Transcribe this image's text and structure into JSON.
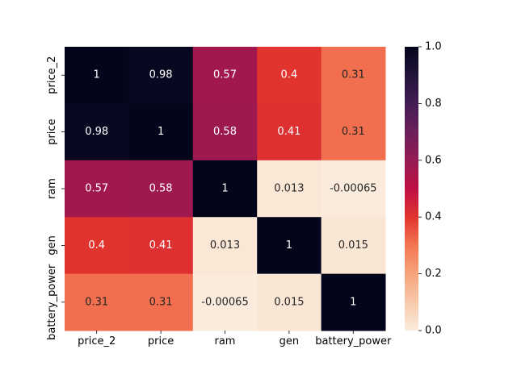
{
  "chart_data": {
    "type": "heatmap",
    "title": "",
    "xlabel": "",
    "ylabel": "",
    "x_categories": [
      "price_2",
      "price",
      "ram",
      "gen",
      "battery_power"
    ],
    "y_categories": [
      "price_2",
      "price",
      "ram",
      "gen",
      "battery_power"
    ],
    "values": [
      [
        1,
        0.98,
        0.57,
        0.4,
        0.31
      ],
      [
        0.98,
        1,
        0.58,
        0.41,
        0.31
      ],
      [
        0.57,
        0.58,
        1,
        0.013,
        -0.00065
      ],
      [
        0.4,
        0.41,
        0.013,
        1,
        0.015
      ],
      [
        0.31,
        0.31,
        -0.00065,
        0.015,
        1
      ]
    ],
    "cell_labels": [
      [
        "1",
        "0.98",
        "0.57",
        "0.4",
        "0.31"
      ],
      [
        "0.98",
        "1",
        "0.58",
        "0.41",
        "0.31"
      ],
      [
        "0.57",
        "0.58",
        "1",
        "0.013",
        "-0.00065"
      ],
      [
        "0.4",
        "0.41",
        "0.013",
        "1",
        "0.015"
      ],
      [
        "0.31",
        "0.31",
        "-0.00065",
        "0.015",
        "1"
      ]
    ],
    "colorbar": {
      "range": [
        0.0,
        1.0
      ],
      "ticks": [
        0.0,
        0.2,
        0.4,
        0.6,
        0.8,
        1.0
      ],
      "tick_labels": [
        "0.0",
        "0.2",
        "0.4",
        "0.6",
        "0.8",
        "1.0"
      ],
      "colormap": "rocket_r"
    },
    "grid": false,
    "legend": "colorbar-right"
  }
}
